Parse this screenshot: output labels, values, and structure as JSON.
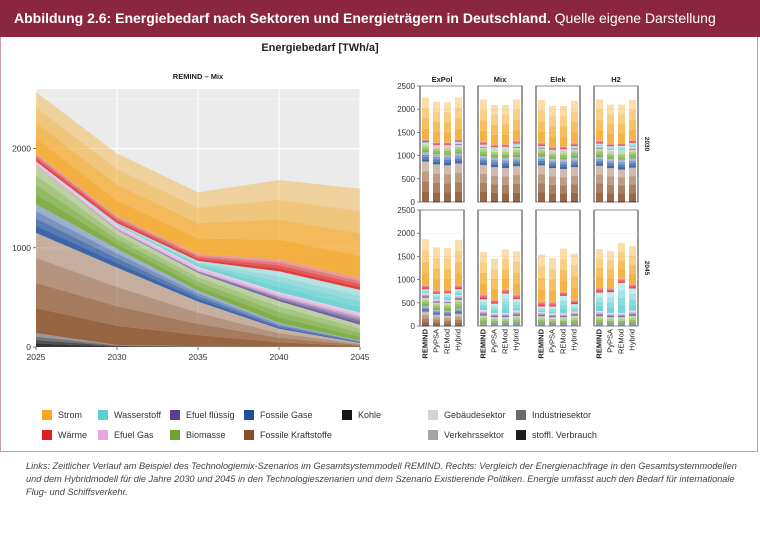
{
  "header": {
    "title_bold": "Abbildung 2.6: Energiebedarf nach Sektoren und Energieträgern in Deutschland.",
    "title_rest": " Quelle eigene Darstellung"
  },
  "main_title": "Energiebedarf [TWh/a]",
  "caption": "Links: Zeitlicher Verlauf am Beispiel des Technologiemix-Szenarios im Gesamtsystemmodell REMIND. Rechts: Vergleich der Energienachfrage in den Gesamtsystemmodellen und dem Hybridmodell für die Jahre 2030 und 2045 in den Technologieszenarien und dem Szenario Existierende Politiken. Energie umfasst auch den Bedarf für internationale Flug- und Schiffsverkehr.",
  "legend": {
    "carriers": [
      {
        "label": "Strom",
        "color": "#f5a623"
      },
      {
        "label": "Wärme",
        "color": "#e02020"
      },
      {
        "label": "Wasserstoff",
        "color": "#5ccfd0"
      },
      {
        "label": "Efuel Gas",
        "color": "#e6a6e0"
      },
      {
        "label": "Efuel flüssig",
        "color": "#5b3f8c"
      },
      {
        "label": "Biomasse",
        "color": "#6fa52e"
      },
      {
        "label": "Fossile Gase",
        "color": "#1f4e9c"
      },
      {
        "label": "Fossile Kraftstoffe",
        "color": "#8a4e26"
      },
      {
        "label": "Kohle",
        "color": "#151515"
      }
    ],
    "sectors": [
      {
        "label": "Gebäudesektor",
        "color": "#d4d4d4"
      },
      {
        "label": "Verkehrssektor",
        "color": "#a4a4a4"
      },
      {
        "label": "Industriesektor",
        "color": "#6a6a6a"
      },
      {
        "label": "stoffl. Verbrauch",
        "color": "#1e1e1e"
      }
    ]
  },
  "chart_data": [
    {
      "type": "area",
      "title": "REMIND – Mix",
      "x": [
        2025,
        2030,
        2035,
        2040,
        2045
      ],
      "xlim": [
        2025,
        2045
      ],
      "ylim": [
        0,
        2600
      ],
      "yticks": [
        0,
        1000,
        2000
      ],
      "grid": true,
      "stack_order_bottom_to_top": [
        "Kohle",
        "Fossile Kraftstoffe",
        "Fossile Gase",
        "Biomasse",
        "Efuel flüssig",
        "Efuel Gas",
        "Wasserstoff",
        "Wärme",
        "Strom"
      ],
      "series": [
        {
          "name": "Kohle",
          "values": [
            140,
            20,
            8,
            3,
            0
          ]
        },
        {
          "name": "Fossile Kraftstoffe",
          "values": [
            1010,
            780,
            450,
            180,
            40
          ]
        },
        {
          "name": "Fossile Gase",
          "values": [
            290,
            190,
            110,
            60,
            25
          ]
        },
        {
          "name": "Biomasse",
          "values": [
            390,
            190,
            180,
            220,
            160
          ]
        },
        {
          "name": "Efuel flüssig",
          "values": [
            0,
            10,
            20,
            50,
            80
          ]
        },
        {
          "name": "Efuel Gas",
          "values": [
            40,
            40,
            40,
            40,
            40
          ]
        },
        {
          "name": "Wasserstoff",
          "values": [
            0,
            20,
            60,
            210,
            230
          ]
        },
        {
          "name": "Wärme",
          "values": [
            80,
            70,
            70,
            120,
            120
          ]
        },
        {
          "name": "Strom",
          "values": [
            620,
            630,
            620,
            800,
            900
          ]
        }
      ]
    },
    {
      "type": "bar",
      "columns": [
        "ExPol",
        "Mix",
        "Elek",
        "H2"
      ],
      "rows": [
        "2030",
        "2045"
      ],
      "categories": [
        "REMIND",
        "PyPSA",
        "REMod",
        "Hybrid"
      ],
      "ylim": [
        0,
        2500
      ],
      "yticks": [
        0,
        500,
        1000,
        1500,
        2000,
        2500
      ],
      "series_order_bottom_to_top": [
        "Kohle",
        "Fossile Kraftstoffe",
        "Fossile Gase",
        "Biomasse",
        "Efuel flüssig",
        "Efuel Gas",
        "Wasserstoff",
        "Wärme",
        "Strom"
      ],
      "panels": [
        {
          "column": "ExPol",
          "row": "2030",
          "bars": [
            {
              "model": "REMIND",
              "values": [
                20,
                850,
                200,
                180,
                0,
                30,
                10,
                60,
                900
              ]
            },
            {
              "model": "PyPSA",
              "values": [
                10,
                800,
                220,
                160,
                0,
                30,
                10,
                60,
                870
              ]
            },
            {
              "model": "REMod",
              "values": [
                10,
                780,
                230,
                170,
                0,
                30,
                10,
                60,
                860
              ]
            },
            {
              "model": "Hybrid",
              "values": [
                10,
                820,
                210,
                190,
                20,
                30,
                20,
                60,
                890
              ]
            }
          ]
        },
        {
          "column": "Mix",
          "row": "2030",
          "bars": [
            {
              "model": "REMIND",
              "values": [
                20,
                780,
                190,
                190,
                10,
                30,
                20,
                70,
                900
              ]
            },
            {
              "model": "PyPSA",
              "values": [
                10,
                740,
                210,
                160,
                0,
                30,
                30,
                60,
                850
              ]
            },
            {
              "model": "REMod",
              "values": [
                10,
                720,
                220,
                170,
                0,
                30,
                40,
                60,
                840
              ]
            },
            {
              "model": "Hybrid",
              "values": [
                10,
                760,
                200,
                200,
                20,
                30,
                40,
                70,
                880
              ]
            }
          ]
        },
        {
          "column": "Elek",
          "row": "2030",
          "bars": [
            {
              "model": "REMIND",
              "values": [
                20,
                770,
                190,
                180,
                10,
                30,
                10,
                70,
                920
              ]
            },
            {
              "model": "PyPSA",
              "values": [
                10,
                720,
                200,
                160,
                0,
                30,
                10,
                60,
                880
              ]
            },
            {
              "model": "REMod",
              "values": [
                10,
                700,
                210,
                170,
                0,
                30,
                20,
                60,
                870
              ]
            },
            {
              "model": "Hybrid",
              "values": [
                10,
                740,
                200,
                190,
                20,
                30,
                20,
                70,
                900
              ]
            }
          ]
        },
        {
          "column": "H2",
          "row": "2030",
          "bars": [
            {
              "model": "REMIND",
              "values": [
                20,
                760,
                190,
                190,
                10,
                30,
                60,
                70,
                880
              ]
            },
            {
              "model": "PyPSA",
              "values": [
                10,
                720,
                200,
                160,
                0,
                30,
                80,
                60,
                840
              ]
            },
            {
              "model": "REMod",
              "values": [
                10,
                690,
                210,
                170,
                0,
                30,
                100,
                60,
                830
              ]
            },
            {
              "model": "Hybrid",
              "values": [
                10,
                730,
                200,
                190,
                20,
                30,
                90,
                70,
                860
              ]
            }
          ]
        },
        {
          "column": "ExPol",
          "row": "2045",
          "bars": [
            {
              "model": "REMIND",
              "values": [
                10,
                300,
                120,
                180,
                60,
                40,
                80,
                100,
                980
              ]
            },
            {
              "model": "PyPSA",
              "values": [
                5,
                240,
                100,
                160,
                40,
                30,
                120,
                80,
                920
              ]
            },
            {
              "model": "REMod",
              "values": [
                5,
                220,
                100,
                170,
                30,
                30,
                150,
                80,
                900
              ]
            },
            {
              "model": "Hybrid",
              "values": [
                5,
                260,
                110,
                190,
                60,
                40,
                130,
                100,
                960
              ]
            }
          ]
        },
        {
          "column": "Mix",
          "row": "2045",
          "bars": [
            {
              "model": "REMIND",
              "values": [
                0,
                40,
                25,
                160,
                80,
                40,
                230,
                120,
                900
              ]
            },
            {
              "model": "PyPSA",
              "values": [
                0,
                20,
                20,
                150,
                60,
                30,
                200,
                100,
                870
              ]
            },
            {
              "model": "REMod",
              "values": [
                0,
                20,
                20,
                150,
                60,
                30,
                420,
                100,
                850
              ]
            },
            {
              "model": "Hybrid",
              "values": [
                0,
                30,
                20,
                170,
                70,
                40,
                250,
                110,
                920
              ]
            }
          ]
        },
        {
          "column": "Elek",
          "row": "2045",
          "bars": [
            {
              "model": "REMIND",
              "values": [
                0,
                30,
                20,
                160,
                60,
                30,
                120,
                120,
                1000
              ]
            },
            {
              "model": "PyPSA",
              "values": [
                0,
                20,
                20,
                150,
                50,
                30,
                150,
                100,
                950
              ]
            },
            {
              "model": "REMod",
              "values": [
                0,
                20,
                20,
                150,
                50,
                30,
                380,
                100,
                920
              ]
            },
            {
              "model": "Hybrid",
              "values": [
                0,
                30,
                20,
                170,
                60,
                30,
                160,
                110,
                980
              ]
            }
          ]
        },
        {
          "column": "H2",
          "row": "2045",
          "bars": [
            {
              "model": "REMIND",
              "values": [
                0,
                30,
                20,
                160,
                70,
                40,
                400,
                120,
                820
              ]
            },
            {
              "model": "PyPSA",
              "values": [
                0,
                20,
                20,
                150,
                60,
                30,
                450,
                100,
                780
              ]
            },
            {
              "model": "REMod",
              "values": [
                0,
                20,
                20,
                150,
                60,
                30,
                650,
                100,
                760
              ]
            },
            {
              "model": "Hybrid",
              "values": [
                0,
                30,
                20,
                170,
                70,
                40,
                480,
                110,
                800
              ]
            }
          ]
        }
      ]
    }
  ]
}
